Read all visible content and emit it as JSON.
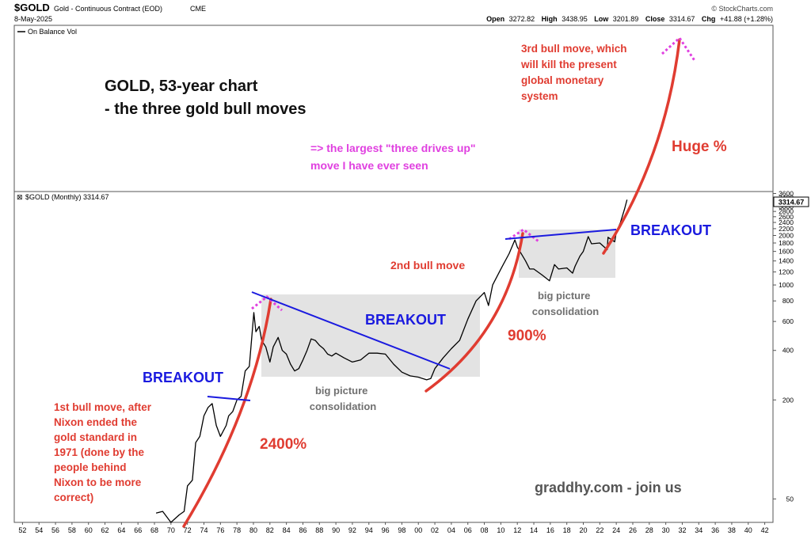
{
  "header": {
    "symbol": "$GOLD",
    "description": "Gold - Continuous Contract (EOD)",
    "exchange": "CME",
    "date": "8-May-2025",
    "credit": "© StockCharts.com",
    "quote": {
      "open_label": "Open",
      "open": "3272.82",
      "high_label": "High",
      "high": "3438.95",
      "low_label": "Low",
      "low": "3201.89",
      "close_label": "Close",
      "close": "3314.67",
      "chg_label": "Chg",
      "chg": "+41.88 (+1.28%)"
    }
  },
  "upper_panel": {
    "legend": "On Balance Vol",
    "title_line1": "GOLD, 53-year chart",
    "title_line2": "- the three gold bull moves",
    "note_line1": "=> the largest \"three drives up\"",
    "note_line2": "move I have ever seen"
  },
  "price_panel": {
    "legend": "$GOLD (Monthly) 3314.67",
    "last_price": "3314.67"
  },
  "annotations": {
    "bull1": [
      "1st bull move, after",
      "Nixon ended the",
      "gold standard in",
      "1971 (done by the",
      "people behind",
      "Nixon to be more",
      "correct)"
    ],
    "bull2": "2nd bull move",
    "bull3": [
      "3rd bull move, which",
      "will kill the present",
      "global monetary",
      "system"
    ],
    "breakout1": "BREAKOUT",
    "breakout2": "BREAKOUT",
    "breakout3": "BREAKOUT",
    "pct1": "2400%",
    "pct2": "900%",
    "pct3": "Huge %",
    "consolidation1": [
      "big picture",
      "consolidation"
    ],
    "consolidation2": [
      "big picture",
      "consolidation"
    ],
    "watermark": "graddhy.com - join us"
  },
  "colors": {
    "accent_red": "#e03c31",
    "breakout_blue": "#1a1adf",
    "magenta": "#e040e0",
    "price_line": "#000000",
    "consolidation_box": "#d9d9d9",
    "gray_text": "#707070"
  },
  "chart_data": {
    "type": "line",
    "scale": "log",
    "x_unit": "year",
    "xlim": [
      1951,
      2043
    ],
    "ylim": [
      36,
      3700
    ],
    "x_tick_labels": [
      "52",
      "54",
      "56",
      "58",
      "60",
      "62",
      "64",
      "66",
      "68",
      "70",
      "72",
      "74",
      "76",
      "78",
      "80",
      "82",
      "84",
      "86",
      "88",
      "90",
      "92",
      "94",
      "96",
      "98",
      "00",
      "02",
      "04",
      "06",
      "08",
      "10",
      "12",
      "14",
      "16",
      "18",
      "20",
      "22",
      "24",
      "26",
      "28",
      "30",
      "32",
      "34",
      "36",
      "38",
      "40",
      "42"
    ],
    "y_tick_labels": [
      "3600",
      "3400",
      "3200",
      "3000",
      "2800",
      "2600",
      "2400",
      "2200",
      "2000",
      "1800",
      "1600",
      "1400",
      "1200",
      "1000",
      "800",
      "600",
      "400",
      "200",
      "50"
    ],
    "y_tick_values": [
      3600,
      3400,
      3200,
      3000,
      2800,
      2600,
      2400,
      2200,
      2000,
      1800,
      1600,
      1400,
      1200,
      1000,
      800,
      600,
      400,
      200,
      50
    ],
    "series": [
      {
        "x": [
          1968.2,
          1969,
          1970,
          1971,
          1971.6,
          1972,
          1972.6,
          1973,
          1973.5,
          1974,
          1974.5,
          1975,
          1975.5,
          1976,
          1976.7,
          1977,
          1977.5,
          1978,
          1978.5,
          1979,
          1979.5,
          1980.05,
          1980.3,
          1980.7,
          1981,
          1981.5,
          1982,
          1982.4,
          1983,
          1983.5,
          1984,
          1984.5,
          1985,
          1985.5,
          1986,
          1986.5,
          1987,
          1987.5,
          1988,
          1988.5,
          1989,
          1989.5,
          1990,
          1991,
          1992,
          1993,
          1994,
          1995,
          1996,
          1997,
          1998,
          1999,
          2000,
          2001,
          2001.5,
          2002,
          2003,
          2004,
          2005,
          2006,
          2007,
          2008,
          2008.5,
          2009,
          2010,
          2011,
          2011.7,
          2012,
          2013,
          2013.5,
          2014,
          2015,
          2015.9,
          2016.5,
          2017,
          2018,
          2018.7,
          2019,
          2019.6,
          2020,
          2020.6,
          2021,
          2022,
          2022.9,
          2023,
          2023.8,
          2024,
          2024.5,
          2025,
          2025.3
        ],
        "y": [
          41,
          42,
          36,
          40,
          42,
          60,
          65,
          110,
          120,
          160,
          180,
          190,
          140,
          120,
          140,
          160,
          170,
          200,
          210,
          300,
          320,
          680,
          520,
          560,
          460,
          420,
          340,
          420,
          480,
          400,
          380,
          330,
          300,
          310,
          350,
          400,
          470,
          460,
          430,
          410,
          380,
          370,
          385,
          360,
          340,
          350,
          385,
          385,
          380,
          330,
          295,
          280,
          275,
          265,
          270,
          310,
          360,
          410,
          460,
          620,
          800,
          900,
          750,
          1000,
          1250,
          1550,
          1880,
          1700,
          1400,
          1250,
          1250,
          1150,
          1060,
          1330,
          1250,
          1270,
          1180,
          1300,
          1500,
          1600,
          1970,
          1780,
          1800,
          1640,
          1950,
          1830,
          2100,
          2400,
          2900,
          3300
        ]
      }
    ],
    "grid": false,
    "legend": "top-left"
  }
}
